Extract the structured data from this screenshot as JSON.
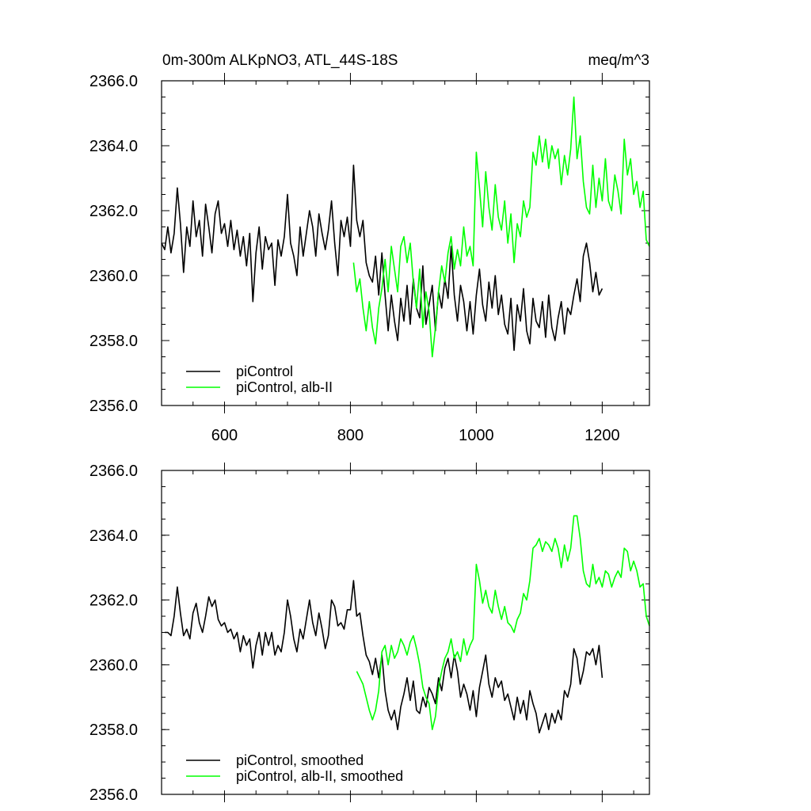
{
  "title": "0m-300m ALKpNO3, ATL_44S-18S",
  "units": "meq/m^3",
  "colors": {
    "black": "#000000",
    "green": "#00ff00"
  },
  "chart_data": [
    {
      "type": "line",
      "xlim": [
        500,
        1275
      ],
      "ylim": [
        2356.0,
        2366.0
      ],
      "x_major_ticks": [
        600,
        800,
        1000,
        1200
      ],
      "x_tick_labels": [
        "600",
        "800",
        "1000",
        "1200"
      ],
      "y_major_ticks": [
        2356.0,
        2358.0,
        2360.0,
        2362.0,
        2364.0,
        2366.0
      ],
      "y_tick_labels": [
        "2356.0",
        "2358.0",
        "2360.0",
        "2362.0",
        "2364.0",
        "2366.0"
      ],
      "legend_position": "bottom-left",
      "series": [
        {
          "name": "piControl",
          "color": "#000000",
          "x": [
            500,
            505,
            510,
            515,
            520,
            525,
            530,
            535,
            540,
            545,
            550,
            555,
            560,
            565,
            570,
            575,
            580,
            585,
            590,
            595,
            600,
            605,
            610,
            615,
            620,
            625,
            630,
            635,
            640,
            645,
            650,
            655,
            660,
            665,
            670,
            675,
            680,
            685,
            690,
            695,
            700,
            705,
            710,
            715,
            720,
            725,
            730,
            735,
            740,
            745,
            750,
            755,
            760,
            765,
            770,
            775,
            780,
            785,
            790,
            795,
            800,
            805,
            810,
            815,
            820,
            825,
            830,
            835,
            840,
            845,
            850,
            855,
            860,
            865,
            870,
            875,
            880,
            885,
            890,
            895,
            900,
            905,
            910,
            915,
            920,
            925,
            930,
            935,
            940,
            945,
            950,
            955,
            960,
            965,
            970,
            975,
            980,
            985,
            990,
            995,
            1000,
            1005,
            1010,
            1015,
            1020,
            1025,
            1030,
            1035,
            1040,
            1045,
            1050,
            1055,
            1060,
            1065,
            1070,
            1075,
            1080,
            1085,
            1090,
            1095,
            1100,
            1105,
            1110,
            1115,
            1120,
            1125,
            1130,
            1135,
            1140,
            1145,
            1150,
            1155,
            1160,
            1165,
            1170,
            1175,
            1180,
            1185,
            1190,
            1195,
            1200
          ],
          "y": [
            2361.0,
            2360.8,
            2361.5,
            2360.7,
            2361.3,
            2362.7,
            2361.6,
            2360.1,
            2361.5,
            2360.9,
            2362.3,
            2361.2,
            2361.7,
            2360.6,
            2362.2,
            2361.5,
            2360.7,
            2361.9,
            2362.3,
            2361.3,
            2361.6,
            2360.9,
            2361.7,
            2360.8,
            2361.4,
            2360.6,
            2361.2,
            2360.3,
            2361.3,
            2359.2,
            2360.7,
            2361.5,
            2360.2,
            2361.2,
            2360.8,
            2361.0,
            2359.7,
            2361.1,
            2360.6,
            2361.2,
            2362.5,
            2361.0,
            2360.6,
            2360.0,
            2361.5,
            2360.6,
            2361.3,
            2362.0,
            2361.5,
            2360.6,
            2361.9,
            2361.3,
            2360.8,
            2361.4,
            2362.3,
            2361.0,
            2360.0,
            2361.7,
            2361.2,
            2361.8,
            2360.9,
            2363.4,
            2361.7,
            2361.2,
            2361.7,
            2360.4,
            2360.0,
            2359.8,
            2360.6,
            2359.4,
            2360.7,
            2359.4,
            2358.3,
            2359.4,
            2358.6,
            2358.0,
            2359.3,
            2358.6,
            2359.7,
            2358.5,
            2359.9,
            2359.0,
            2358.7,
            2360.3,
            2358.5,
            2359.1,
            2359.7,
            2358.3,
            2359.5,
            2359.0,
            2359.9,
            2359.3,
            2360.9,
            2359.4,
            2358.6,
            2359.7,
            2359.2,
            2358.3,
            2359.2,
            2358.2,
            2359.4,
            2360.2,
            2359.1,
            2358.6,
            2359.8,
            2359.0,
            2360.0,
            2358.8,
            2359.4,
            2358.5,
            2358.2,
            2359.3,
            2357.7,
            2359.1,
            2358.6,
            2359.6,
            2358.3,
            2357.9,
            2359.3,
            2358.6,
            2358.4,
            2359.2,
            2358.1,
            2359.4,
            2358.4,
            2358.0,
            2358.7,
            2359.2,
            2358.2,
            2359.0,
            2358.8,
            2359.4,
            2359.9,
            2359.2,
            2360.6,
            2361.0,
            2360.4,
            2359.5,
            2360.1,
            2359.4,
            2359.6
          ]
        },
        {
          "name": "piControl, alb-II",
          "color": "#00ff00",
          "x": [
            805,
            810,
            815,
            820,
            825,
            830,
            835,
            840,
            845,
            850,
            855,
            860,
            865,
            870,
            875,
            880,
            885,
            890,
            895,
            900,
            905,
            910,
            915,
            920,
            925,
            930,
            935,
            940,
            945,
            950,
            955,
            960,
            965,
            970,
            975,
            980,
            985,
            990,
            995,
            1000,
            1005,
            1010,
            1015,
            1020,
            1025,
            1030,
            1035,
            1040,
            1045,
            1050,
            1055,
            1060,
            1065,
            1070,
            1075,
            1080,
            1085,
            1090,
            1095,
            1100,
            1105,
            1110,
            1115,
            1120,
            1125,
            1130,
            1135,
            1140,
            1145,
            1150,
            1155,
            1160,
            1165,
            1170,
            1175,
            1180,
            1185,
            1190,
            1195,
            1200,
            1205,
            1210,
            1215,
            1220,
            1225,
            1230,
            1235,
            1240,
            1245,
            1250,
            1255,
            1260,
            1265,
            1270,
            1275
          ],
          "y": [
            2360.4,
            2359.5,
            2359.9,
            2359.0,
            2358.3,
            2359.2,
            2358.4,
            2357.9,
            2359.0,
            2359.6,
            2360.5,
            2359.5,
            2360.9,
            2360.2,
            2359.5,
            2360.9,
            2361.2,
            2360.4,
            2361.0,
            2359.8,
            2359.0,
            2360.2,
            2358.4,
            2359.5,
            2358.9,
            2357.5,
            2358.4,
            2359.5,
            2360.3,
            2359.8,
            2360.7,
            2361.2,
            2360.2,
            2360.8,
            2360.3,
            2361.5,
            2360.6,
            2360.9,
            2360.3,
            2363.8,
            2362.7,
            2361.5,
            2363.2,
            2362.1,
            2361.4,
            2362.8,
            2361.8,
            2361.4,
            2362.3,
            2361.0,
            2361.9,
            2360.4,
            2361.6,
            2361.2,
            2362.3,
            2361.8,
            2362.1,
            2363.8,
            2363.4,
            2364.3,
            2363.5,
            2364.2,
            2363.3,
            2364.0,
            2363.6,
            2363.9,
            2362.8,
            2363.7,
            2363.1,
            2363.9,
            2365.5,
            2363.6,
            2364.3,
            2362.9,
            2362.1,
            2361.9,
            2363.4,
            2362.1,
            2363.0,
            2362.3,
            2363.6,
            2362.3,
            2362.0,
            2363.1,
            2362.6,
            2361.9,
            2364.2,
            2363.1,
            2363.6,
            2362.5,
            2362.9,
            2362.1,
            2362.6,
            2361.1,
            2360.9
          ]
        }
      ]
    },
    {
      "type": "line",
      "xlim": [
        500,
        1275
      ],
      "ylim": [
        2356.0,
        2366.0
      ],
      "x_major_ticks": [
        600,
        800,
        1000,
        1200
      ],
      "y_major_ticks": [
        2356.0,
        2358.0,
        2360.0,
        2362.0,
        2364.0,
        2366.0
      ],
      "y_tick_labels": [
        "2356.0",
        "2358.0",
        "2360.0",
        "2362.0",
        "2364.0",
        "2366.0"
      ],
      "legend_position": "bottom-left",
      "series": [
        {
          "name": "piControl, smoothed",
          "color": "#000000",
          "x": [
            505,
            510,
            515,
            520,
            525,
            530,
            535,
            540,
            545,
            550,
            555,
            560,
            565,
            570,
            575,
            580,
            585,
            590,
            595,
            600,
            605,
            610,
            615,
            620,
            625,
            630,
            635,
            640,
            645,
            650,
            655,
            660,
            665,
            670,
            675,
            680,
            685,
            690,
            695,
            700,
            705,
            710,
            715,
            720,
            725,
            730,
            735,
            740,
            745,
            750,
            755,
            760,
            765,
            770,
            775,
            780,
            785,
            790,
            795,
            800,
            805,
            810,
            815,
            820,
            825,
            830,
            835,
            840,
            845,
            850,
            855,
            860,
            865,
            870,
            875,
            880,
            885,
            890,
            895,
            900,
            905,
            910,
            915,
            920,
            925,
            930,
            935,
            940,
            945,
            950,
            955,
            960,
            965,
            970,
            975,
            980,
            985,
            990,
            995,
            1000,
            1005,
            1010,
            1015,
            1020,
            1025,
            1030,
            1035,
            1040,
            1045,
            1050,
            1055,
            1060,
            1065,
            1070,
            1075,
            1080,
            1085,
            1090,
            1095,
            1100,
            1105,
            1110,
            1115,
            1120,
            1125,
            1130,
            1135,
            1140,
            1145,
            1150,
            1155,
            1160,
            1165,
            1170,
            1175,
            1180,
            1185,
            1190,
            1195,
            1200
          ],
          "y": [
            2361.0,
            2361.0,
            2360.9,
            2361.5,
            2362.4,
            2361.6,
            2360.9,
            2361.1,
            2360.8,
            2361.6,
            2361.9,
            2361.3,
            2361.0,
            2361.5,
            2362.1,
            2361.8,
            2362.0,
            2361.4,
            2361.2,
            2361.3,
            2361.0,
            2361.1,
            2360.8,
            2361.0,
            2360.4,
            2360.9,
            2360.6,
            2360.8,
            2359.9,
            2360.6,
            2361.0,
            2360.3,
            2361.0,
            2360.6,
            2361.0,
            2360.3,
            2360.6,
            2360.4,
            2361.0,
            2362.0,
            2361.5,
            2360.8,
            2360.4,
            2361.1,
            2360.8,
            2361.4,
            2362.0,
            2361.3,
            2360.9,
            2361.6,
            2361.1,
            2360.5,
            2360.9,
            2362.0,
            2361.8,
            2361.2,
            2361.3,
            2361.1,
            2361.7,
            2361.7,
            2362.6,
            2361.5,
            2361.6,
            2360.9,
            2360.3,
            2360.1,
            2359.7,
            2360.2,
            2359.6,
            2360.3,
            2359.2,
            2358.6,
            2358.3,
            2358.6,
            2358.0,
            2358.7,
            2359.1,
            2359.6,
            2358.9,
            2359.5,
            2358.6,
            2358.5,
            2359.0,
            2358.7,
            2359.3,
            2359.1,
            2358.8,
            2359.6,
            2359.2,
            2359.9,
            2360.2,
            2359.6,
            2360.3,
            2359.8,
            2359.0,
            2359.4,
            2359.1,
            2358.6,
            2359.2,
            2358.4,
            2359.3,
            2359.8,
            2360.3,
            2359.4,
            2359.0,
            2359.6,
            2359.3,
            2359.5,
            2358.9,
            2359.1,
            2358.7,
            2358.3,
            2359.0,
            2358.5,
            2358.9,
            2358.3,
            2359.2,
            2358.8,
            2358.5,
            2357.9,
            2358.2,
            2358.5,
            2358.0,
            2358.5,
            2358.2,
            2358.6,
            2358.3,
            2359.2,
            2359.0,
            2359.4,
            2360.5,
            2360.2,
            2359.4,
            2359.8,
            2360.4,
            2360.3,
            2360.5,
            2360.0,
            2360.6,
            2359.6
          ]
        },
        {
          "name": "piControl, alb-II, smoothed",
          "color": "#00ff00",
          "x": [
            810,
            815,
            820,
            825,
            830,
            835,
            840,
            845,
            850,
            855,
            860,
            865,
            870,
            875,
            880,
            885,
            890,
            895,
            900,
            905,
            910,
            915,
            920,
            925,
            930,
            935,
            940,
            945,
            950,
            955,
            960,
            965,
            970,
            975,
            980,
            985,
            990,
            995,
            1000,
            1005,
            1010,
            1015,
            1020,
            1025,
            1030,
            1035,
            1040,
            1045,
            1050,
            1055,
            1060,
            1065,
            1070,
            1075,
            1080,
            1085,
            1090,
            1095,
            1100,
            1105,
            1110,
            1115,
            1120,
            1125,
            1130,
            1135,
            1140,
            1145,
            1150,
            1155,
            1160,
            1165,
            1170,
            1175,
            1180,
            1185,
            1190,
            1195,
            1200,
            1205,
            1210,
            1215,
            1220,
            1225,
            1230,
            1235,
            1240,
            1245,
            1250,
            1255,
            1260,
            1265,
            1270,
            1275
          ],
          "y": [
            2359.8,
            2359.6,
            2359.4,
            2359.0,
            2358.6,
            2358.3,
            2358.6,
            2359.2,
            2360.4,
            2360.6,
            2360.0,
            2360.6,
            2360.2,
            2360.4,
            2360.8,
            2360.6,
            2360.3,
            2360.7,
            2360.9,
            2360.5,
            2360.0,
            2359.3,
            2359.0,
            2358.8,
            2358.0,
            2358.4,
            2359.3,
            2359.8,
            2360.2,
            2360.4,
            2360.8,
            2360.2,
            2360.4,
            2360.1,
            2360.8,
            2360.3,
            2360.6,
            2360.8,
            2363.1,
            2362.6,
            2361.9,
            2362.3,
            2361.8,
            2361.6,
            2362.3,
            2361.8,
            2361.4,
            2361.8,
            2361.3,
            2361.2,
            2361.0,
            2361.4,
            2361.6,
            2362.2,
            2362.0,
            2362.6,
            2363.6,
            2363.7,
            2363.9,
            2363.5,
            2363.8,
            2363.7,
            2363.5,
            2363.9,
            2363.6,
            2363.0,
            2363.7,
            2363.2,
            2363.6,
            2364.6,
            2364.6,
            2363.9,
            2362.9,
            2362.5,
            2362.4,
            2363.1,
            2362.5,
            2362.7,
            2362.4,
            2362.9,
            2362.8,
            2362.4,
            2362.7,
            2362.9,
            2362.7,
            2363.6,
            2363.5,
            2362.9,
            2363.2,
            2362.9,
            2362.4,
            2362.5,
            2361.5,
            2361.2
          ]
        }
      ]
    }
  ]
}
